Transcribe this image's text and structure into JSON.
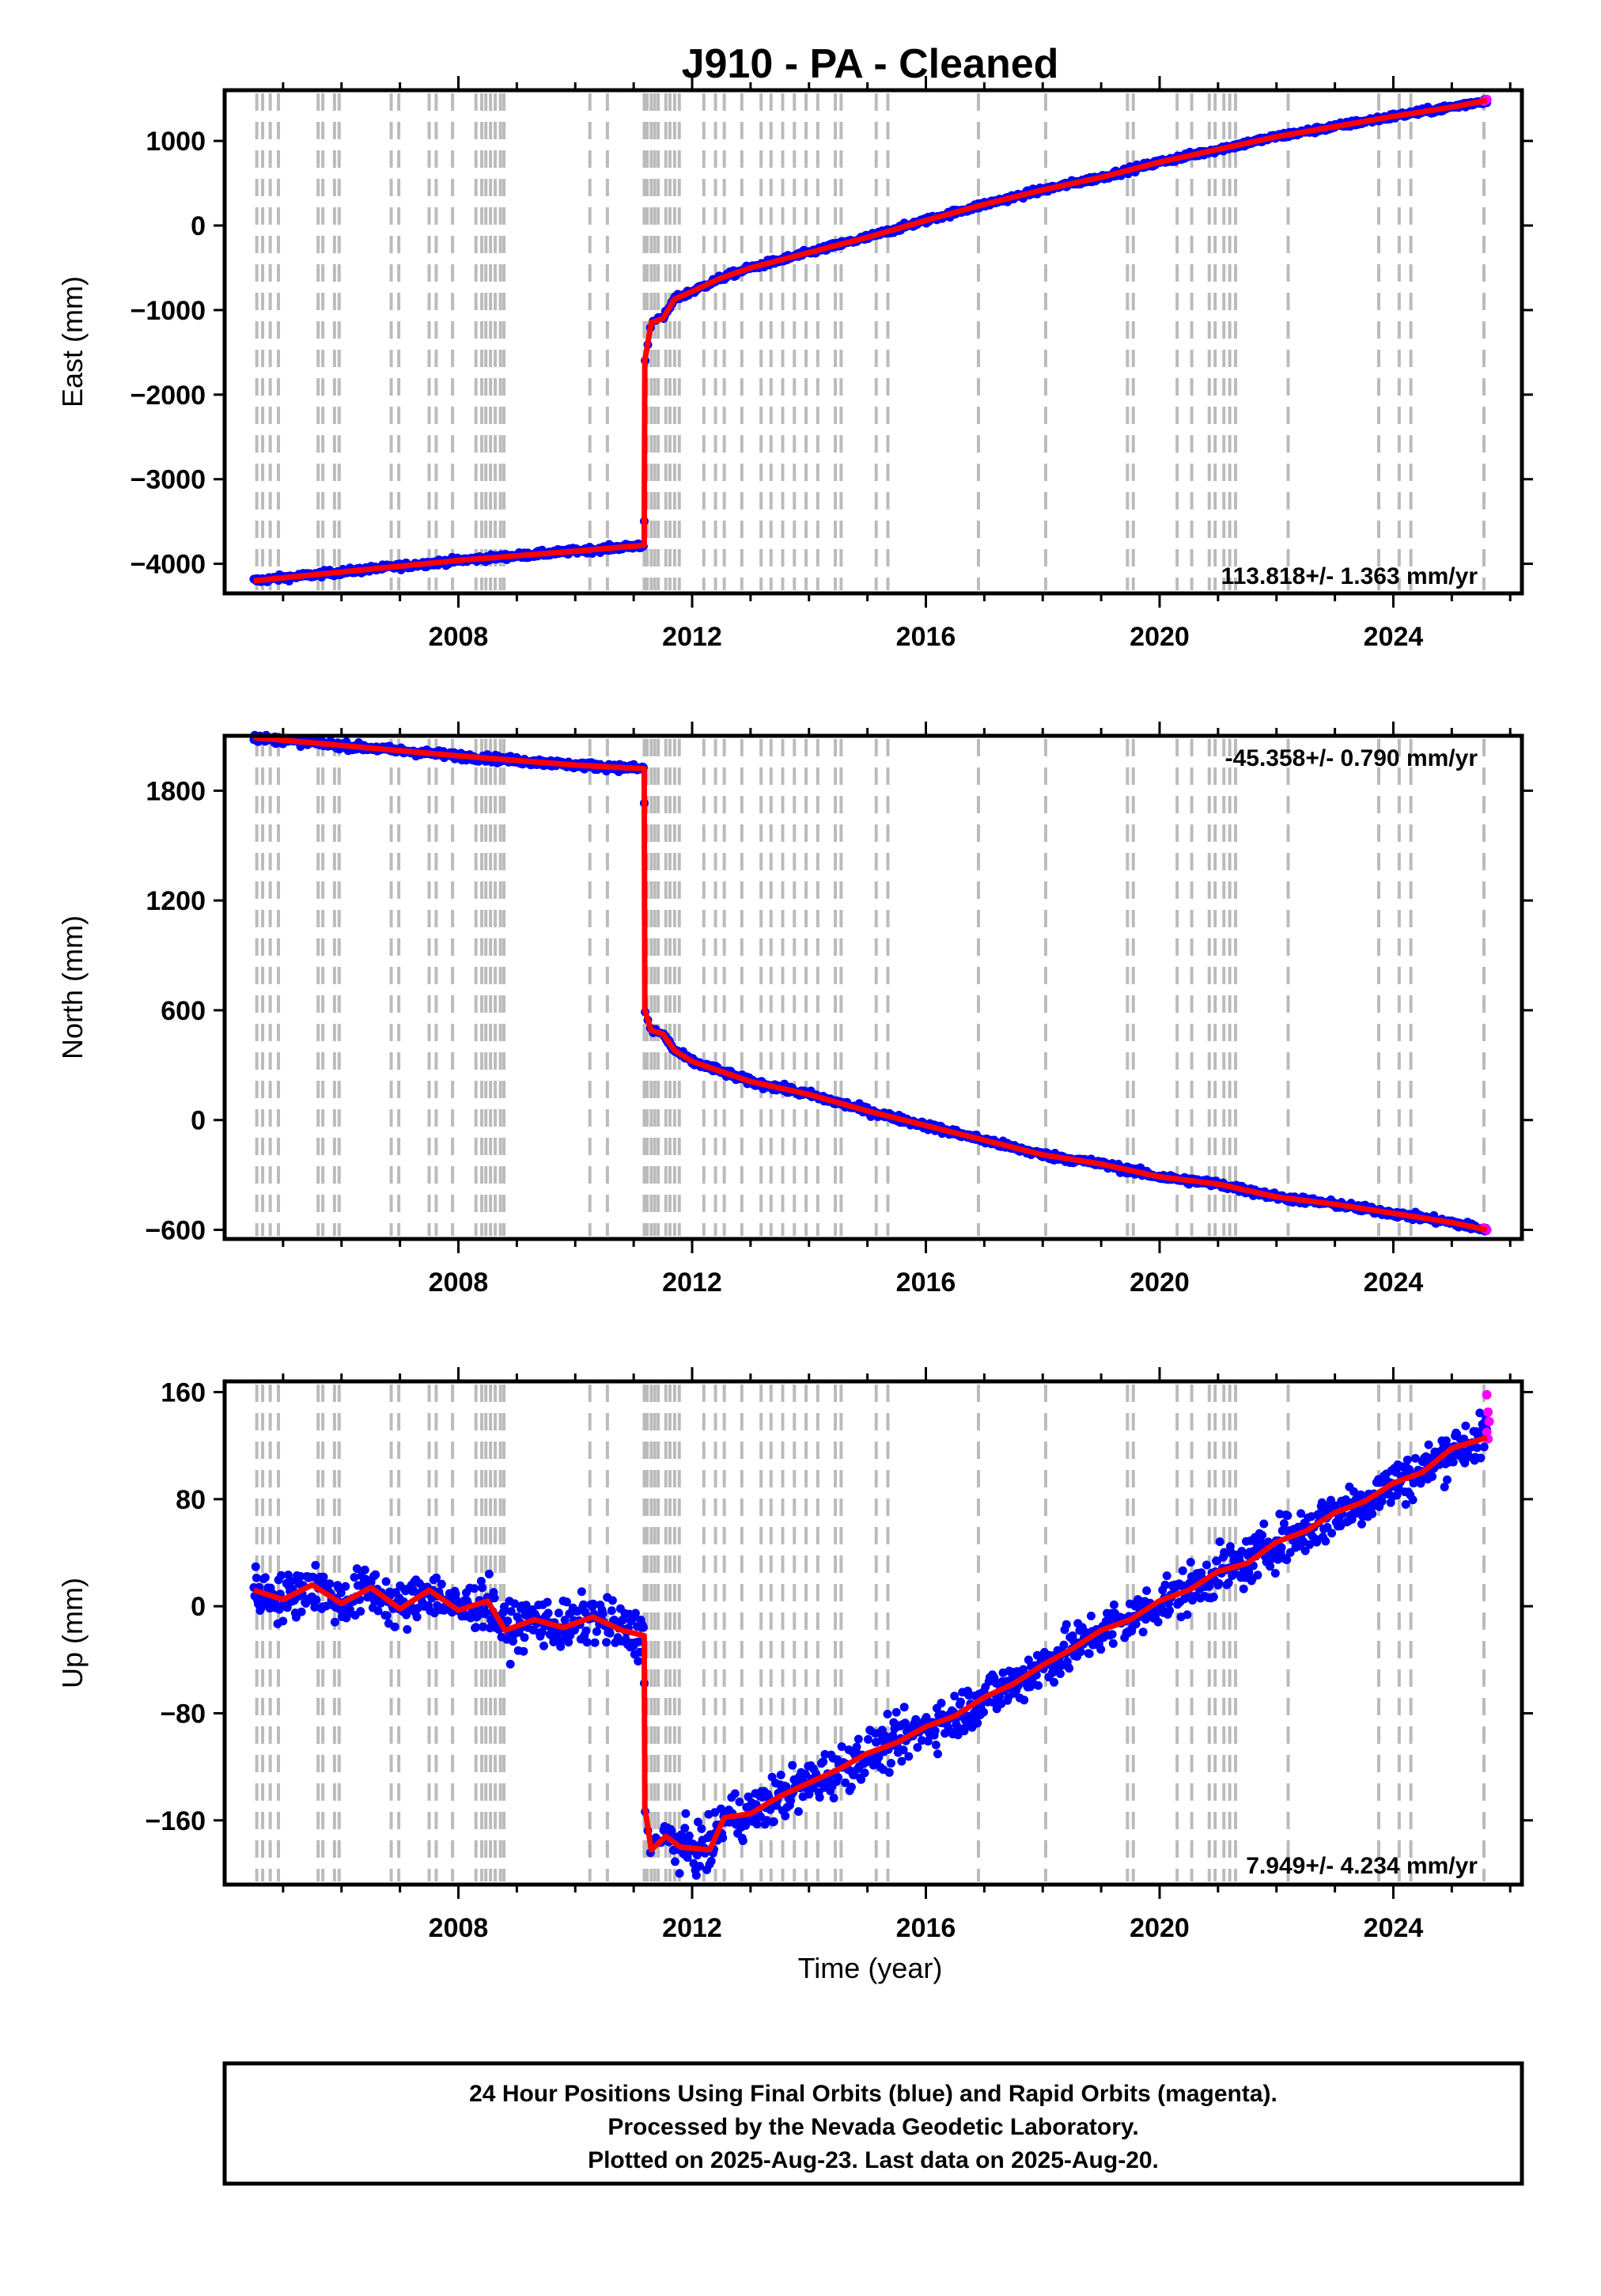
{
  "title": "J910  - PA - Cleaned",
  "xlabel": "Time (year)",
  "footer": {
    "line1": "24 Hour Positions Using Final Orbits (blue) and Rapid Orbits (magenta).",
    "line2": "Processed by the Nevada Geodetic Laboratory.",
    "line3": "Plotted on 2025-Aug-23. Last data on 2025-Aug-20."
  },
  "colors": {
    "final": "#0000ff",
    "rapid": "#ff00ff",
    "model": "#ff0000",
    "event_lines": "#bbbbbb",
    "frame": "#000000"
  },
  "chart_data": [
    {
      "type": "scatter",
      "component": "east",
      "ylabel": "East (mm)",
      "rate_text": "113.818+/- 1.363 mm/yr",
      "xlim": [
        2004.0,
        2026.2
      ],
      "ylim": [
        -4350,
        1600
      ],
      "xticks": [
        2008,
        2012,
        2016,
        2020,
        2024
      ],
      "yticks": [
        -4000,
        -3000,
        -2000,
        -1000,
        0,
        1000
      ],
      "grid": false,
      "model_series": {
        "name": "model",
        "x": [
          2004.5,
          2008.0,
          2010.0,
          2011.18,
          2011.19,
          2011.3,
          2011.5,
          2011.7,
          2012.0,
          2012.5,
          2013.0,
          2014.0,
          2015.0,
          2016.0,
          2017.0,
          2018.0,
          2019.0,
          2020.0,
          2021.0,
          2022.0,
          2023.0,
          2024.0,
          2025.0,
          2025.6
        ],
        "y": [
          -4200,
          -3960,
          -3850,
          -3780,
          -1600,
          -1150,
          -1100,
          -870,
          -780,
          -620,
          -500,
          -320,
          -140,
          60,
          250,
          420,
          570,
          750,
          900,
          1050,
          1170,
          1290,
          1400,
          1480
        ]
      },
      "final_series": {
        "name": "final",
        "noise": 18
      },
      "rapid_points": {
        "x": [
          2025.55,
          2025.6
        ],
        "y": [
          1470,
          1490
        ]
      }
    },
    {
      "type": "scatter",
      "component": "north",
      "ylabel": "North (mm)",
      "rate_text": "-45.358+/- 0.790 mm/yr",
      "xlim": [
        2004.0,
        2026.2
      ],
      "ylim": [
        -650,
        2100
      ],
      "xticks": [
        2008,
        2012,
        2016,
        2020,
        2024
      ],
      "yticks": [
        -600,
        0,
        600,
        1200,
        1800
      ],
      "grid": false,
      "model_series": {
        "name": "model",
        "x": [
          2004.5,
          2008.0,
          2010.0,
          2011.18,
          2011.19,
          2011.3,
          2011.5,
          2011.7,
          2012.0,
          2013.0,
          2014.0,
          2015.0,
          2016.0,
          2017.0,
          2018.0,
          2019.0,
          2020.0,
          2021.0,
          2022.0,
          2023.0,
          2024.0,
          2025.0,
          2025.6
        ],
        "y": [
          2090,
          1990,
          1940,
          1920,
          600,
          490,
          470,
          380,
          320,
          210,
          140,
          50,
          -30,
          -110,
          -190,
          -240,
          -310,
          -350,
          -420,
          -460,
          -510,
          -560,
          -600
        ]
      },
      "final_series": {
        "name": "final",
        "noise": 10
      },
      "rapid_points": {
        "x": [
          2025.55,
          2025.6
        ],
        "y": [
          -590,
          -600
        ]
      }
    },
    {
      "type": "scatter",
      "component": "up",
      "ylabel": "Up (mm)",
      "rate_text": "7.949+/- 4.234 mm/yr",
      "xlim": [
        2004.0,
        2026.2
      ],
      "ylim": [
        -208,
        168
      ],
      "xticks": [
        2008,
        2012,
        2016,
        2020,
        2024
      ],
      "yticks": [
        -160,
        -80,
        0,
        80,
        160
      ],
      "grid": false,
      "model_series": {
        "name": "model",
        "x": [
          2004.5,
          2005.0,
          2005.5,
          2006.0,
          2006.5,
          2007.0,
          2007.5,
          2008.0,
          2008.5,
          2008.8,
          2009.3,
          2009.8,
          2010.3,
          2010.8,
          2011.18,
          2011.19,
          2011.3,
          2011.55,
          2011.8,
          2012.3,
          2012.55,
          2013.0,
          2013.5,
          2014.0,
          2014.5,
          2015.0,
          2015.5,
          2016.0,
          2016.5,
          2017.0,
          2017.5,
          2018.0,
          2018.5,
          2019.0,
          2019.5,
          2020.0,
          2020.5,
          2021.0,
          2021.5,
          2022.0,
          2022.5,
          2023.0,
          2023.5,
          2024.0,
          2024.5,
          2025.0,
          2025.6
        ],
        "y": [
          12,
          5,
          16,
          2,
          14,
          -2,
          12,
          -3,
          4,
          -18,
          -10,
          -16,
          -8,
          -18,
          -22,
          -150,
          -182,
          -172,
          -180,
          -182,
          -158,
          -155,
          -142,
          -132,
          -122,
          -110,
          -102,
          -90,
          -82,
          -68,
          -58,
          -44,
          -32,
          -18,
          -10,
          4,
          12,
          26,
          32,
          48,
          56,
          70,
          78,
          92,
          100,
          118,
          126
        ]
      },
      "final_series": {
        "name": "final",
        "noise": 9
      },
      "rapid_points": {
        "x": [
          2025.6,
          2025.62,
          2025.64,
          2025.6,
          2025.62
        ],
        "y": [
          158,
          145,
          138,
          130,
          125
        ]
      }
    }
  ],
  "event_lines": [
    2004.55,
    2004.65,
    2004.78,
    2004.92,
    2005.6,
    2005.68,
    2005.88,
    2005.96,
    2006.85,
    2006.98,
    2007.5,
    2007.62,
    2007.9,
    2008.3,
    2008.4,
    2008.47,
    2008.55,
    2008.63,
    2008.72,
    2008.78,
    2010.25,
    2010.55,
    2011.18,
    2011.23,
    2011.3,
    2011.36,
    2011.42,
    2011.55,
    2011.62,
    2011.7,
    2011.78,
    2012.2,
    2012.4,
    2012.55,
    2012.85,
    2013.18,
    2013.35,
    2013.55,
    2013.75,
    2013.95,
    2014.15,
    2014.45,
    2014.55,
    2015.15,
    2015.35,
    2016.9,
    2018.05,
    2019.45,
    2019.55,
    2020.3,
    2020.55,
    2020.85,
    2020.95,
    2021.1,
    2021.2,
    2021.3,
    2022.2,
    2023.75,
    2024.1,
    2024.3,
    2025.55
  ]
}
